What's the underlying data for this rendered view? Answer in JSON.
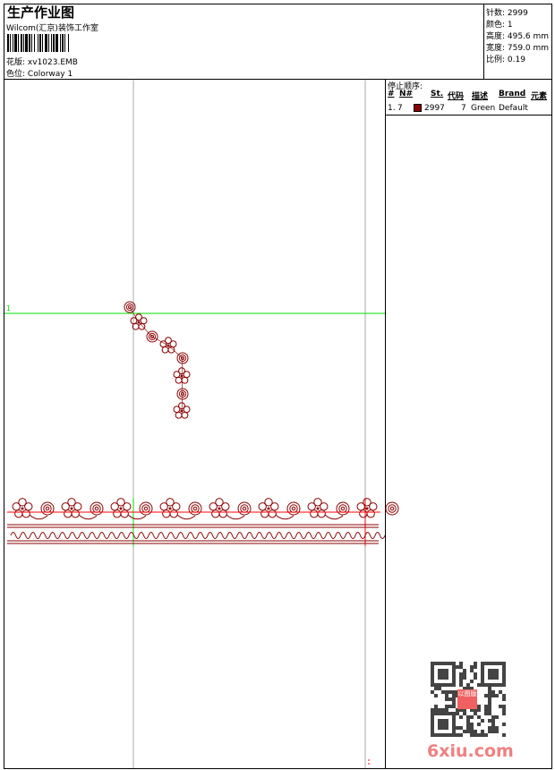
{
  "header": {
    "title": "生产作业图",
    "studio": "Wilcom(汇京)装饰工作室",
    "design_label": "花版:",
    "design_value": "xv1023.EMB",
    "colorway_label": "色位:",
    "colorway_value": "Colorway 1"
  },
  "info": {
    "stitches": "针数: 2999",
    "colors": "颜色: 1",
    "height": "高度: 495.6 mm",
    "width": "宽度: 759.0 mm",
    "scale": "比例: 0.19"
  },
  "stop_sequence": {
    "title": "停止顺序:",
    "columns": [
      "#",
      "N#",
      "St.",
      "代码",
      "描述",
      "Brand",
      "元素"
    ],
    "rows": [
      {
        "index": "1.",
        "needle": "7",
        "color": "#8b0000",
        "stitches": "2997",
        "code": "7",
        "description": "Green",
        "brand": "Default"
      }
    ]
  },
  "canvas": {
    "start_marker": "1",
    "design_color": "#8b0000",
    "guide_color": "#00e000",
    "axis_color": "#ff0000"
  },
  "watermark": {
    "text": "6xiu.com",
    "stamp": "以图版"
  }
}
